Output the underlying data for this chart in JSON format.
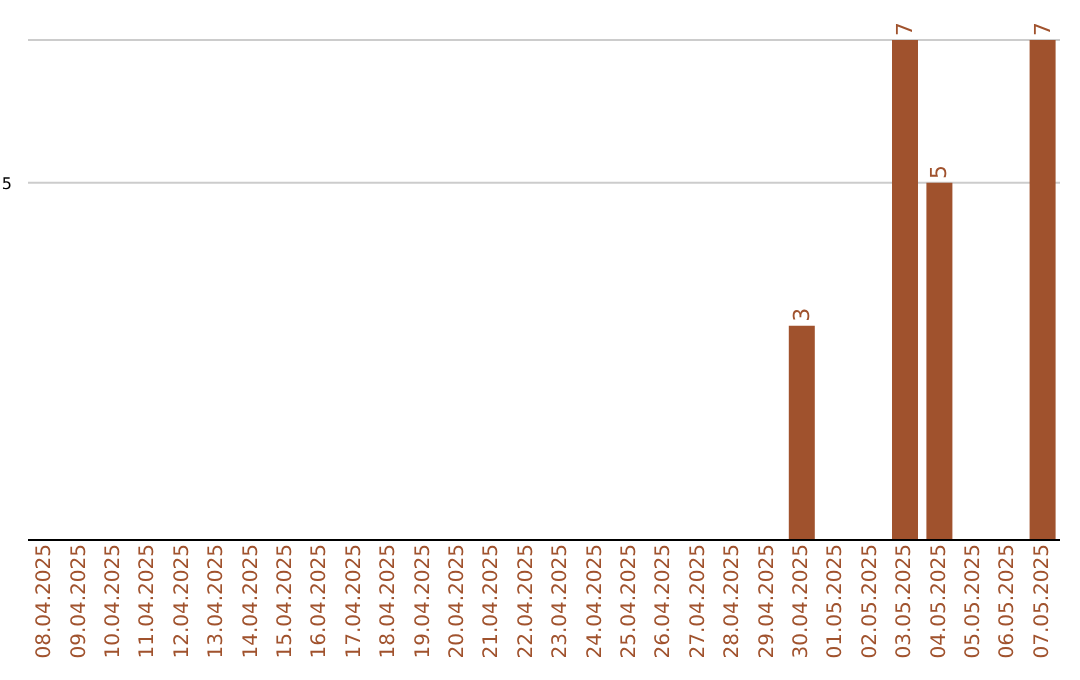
{
  "chart_data": {
    "type": "bar",
    "categories": [
      "08.04.2025",
      "09.04.2025",
      "10.04.2025",
      "11.04.2025",
      "12.04.2025",
      "13.04.2025",
      "14.04.2025",
      "15.04.2025",
      "16.04.2025",
      "17.04.2025",
      "18.04.2025",
      "19.04.2025",
      "20.04.2025",
      "21.04.2025",
      "22.04.2025",
      "23.04.2025",
      "24.04.2025",
      "25.04.2025",
      "26.04.2025",
      "27.04.2025",
      "28.04.2025",
      "29.04.2025",
      "30.04.2025",
      "01.05.2025",
      "02.05.2025",
      "03.05.2025",
      "04.05.2025",
      "05.05.2025",
      "06.05.2025",
      "07.05.2025"
    ],
    "values": [
      null,
      null,
      null,
      null,
      null,
      null,
      null,
      null,
      null,
      null,
      null,
      null,
      null,
      null,
      null,
      null,
      null,
      null,
      null,
      null,
      null,
      null,
      3,
      null,
      null,
      7,
      5,
      null,
      null,
      7
    ],
    "color": "#a0522d",
    "ylim": [
      0,
      7
    ],
    "yticks": [
      5
    ],
    "grid": "y",
    "data_labels": true
  }
}
